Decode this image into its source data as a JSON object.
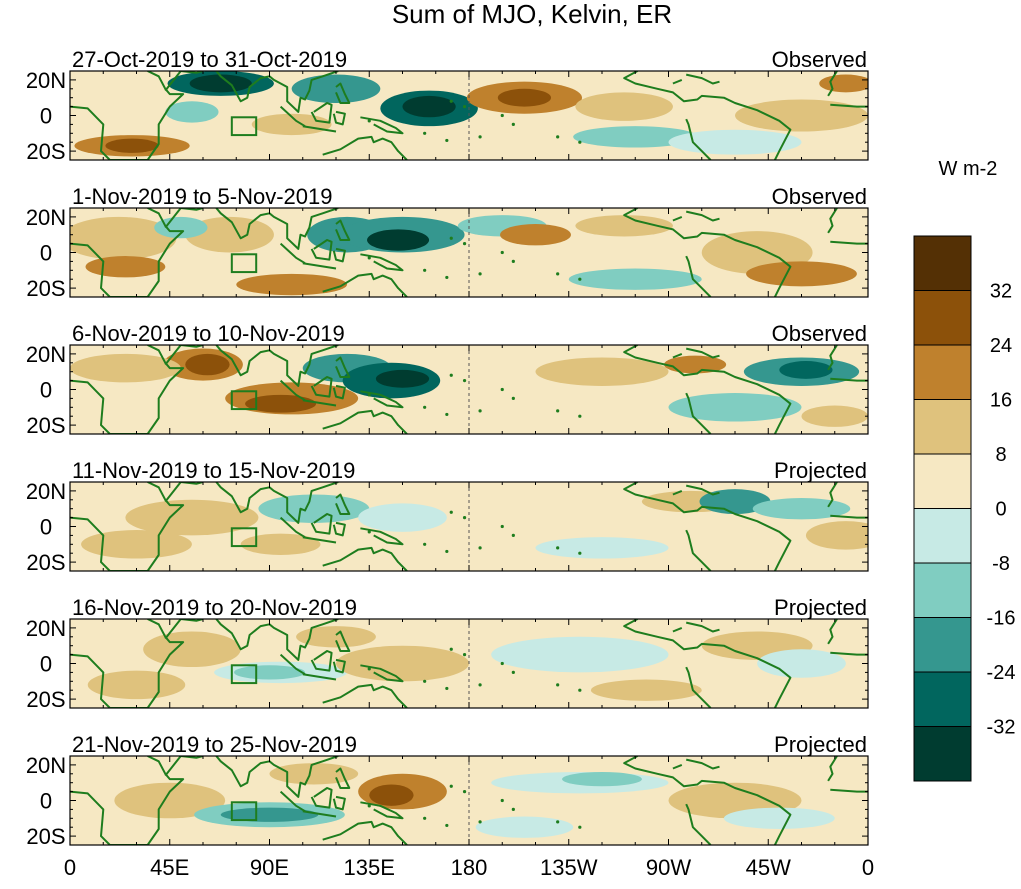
{
  "title": "Sum of MJO, Kelvin, ER",
  "lat_ticks": [
    "20N",
    "0",
    "20S"
  ],
  "lon_ticks": [
    "0",
    "45E",
    "90E",
    "135E",
    "180",
    "135W",
    "90W",
    "45W",
    "0"
  ],
  "colorbar": {
    "unit": "W m-2",
    "labels": [
      "32",
      "24",
      "16",
      "8",
      "0",
      "-8",
      "-16",
      "-24",
      "-32"
    ],
    "colors": [
      "#543005",
      "#8c510a",
      "#bf812d",
      "#dfc27d",
      "#f6e8c3",
      "#c7eae5",
      "#80cdc1",
      "#35978f",
      "#01665e",
      "#003c30"
    ]
  },
  "colors": {
    "coastline": "#1e7d1e"
  },
  "panels": [
    {
      "date": "27-Oct-2019 to 31-Oct-2019",
      "status": "Observed"
    },
    {
      "date": "1-Nov-2019 to 5-Nov-2019",
      "status": "Observed"
    },
    {
      "date": "6-Nov-2019 to 10-Nov-2019",
      "status": "Observed"
    },
    {
      "date": "11-Nov-2019 to 15-Nov-2019",
      "status": "Projected"
    },
    {
      "date": "16-Nov-2019 to 20-Nov-2019",
      "status": "Projected"
    },
    {
      "date": "21-Nov-2019 to 25-Nov-2019",
      "status": "Projected"
    }
  ]
}
